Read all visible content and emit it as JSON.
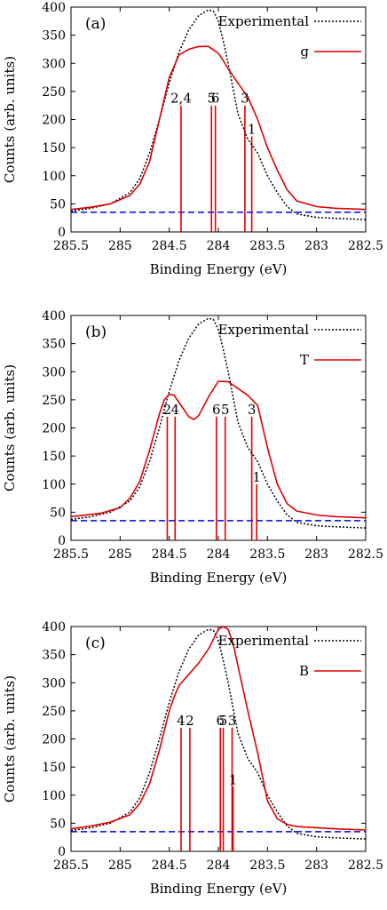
{
  "chart_data": [
    {
      "type": "line",
      "panel_label": "(a)",
      "xlabel": "Binding Energy (eV)",
      "ylabel": "Counts (arb. units)",
      "xlim": [
        285.5,
        282.5
      ],
      "ylim": [
        0,
        400
      ],
      "x_ticks": [
        "285.5",
        "285",
        "284.5",
        "284",
        "283.5",
        "283",
        "282.5"
      ],
      "y_ticks": [
        "0",
        "50",
        "100",
        "150",
        "200",
        "250",
        "300",
        "350",
        "400"
      ],
      "legend_position": "top-right",
      "series": [
        {
          "name": "Experimental",
          "style": "dotted",
          "color": "#000000",
          "x": [
            285.5,
            285.3,
            285.1,
            284.9,
            284.8,
            284.7,
            284.6,
            284.5,
            284.4,
            284.3,
            284.2,
            284.1,
            284.05,
            284.0,
            283.95,
            283.9,
            283.8,
            283.7,
            283.6,
            283.5,
            283.4,
            283.3,
            283.2,
            283.0,
            282.8,
            282.5
          ],
          "y": [
            37,
            42,
            50,
            70,
            95,
            140,
            200,
            265,
            320,
            360,
            385,
            395,
            393,
            375,
            340,
            300,
            210,
            165,
            140,
            100,
            70,
            45,
            32,
            26,
            24,
            22
          ]
        },
        {
          "name": "g",
          "style": "solid",
          "color": "#e00000",
          "x": [
            285.5,
            285.3,
            285.1,
            284.9,
            284.8,
            284.7,
            284.6,
            284.5,
            284.4,
            284.3,
            284.2,
            284.1,
            284.0,
            283.95,
            283.9,
            283.8,
            283.7,
            283.6,
            283.5,
            283.4,
            283.3,
            283.2,
            283.0,
            282.8,
            282.5
          ],
          "y": [
            40,
            44,
            50,
            65,
            85,
            125,
            200,
            275,
            315,
            325,
            330,
            330,
            318,
            305,
            290,
            265,
            240,
            200,
            150,
            110,
            75,
            55,
            45,
            42,
            40
          ]
        }
      ],
      "baseline": {
        "style": "dashed",
        "color": "#0000ee",
        "y": 35
      },
      "peaks": [
        {
          "label": "2,4",
          "x": 284.38,
          "height": 225
        },
        {
          "label": "5",
          "x": 284.07,
          "height": 225
        },
        {
          "label": "6",
          "x": 284.03,
          "height": 225
        },
        {
          "label": "3",
          "x": 283.73,
          "height": 225
        },
        {
          "label": "1",
          "x": 283.66,
          "height": 170
        }
      ]
    },
    {
      "type": "line",
      "panel_label": "(b)",
      "xlabel": "Binding Energy (eV)",
      "ylabel": "Counts (arb. units)",
      "xlim": [
        285.5,
        282.5
      ],
      "ylim": [
        0,
        400
      ],
      "x_ticks": [
        "285.5",
        "285",
        "284.5",
        "284",
        "283.5",
        "283",
        "282.5"
      ],
      "y_ticks": [
        "0",
        "50",
        "100",
        "150",
        "200",
        "250",
        "300",
        "350",
        "400"
      ],
      "legend_position": "top-right",
      "series": [
        {
          "name": "Experimental",
          "style": "dotted",
          "color": "#000000",
          "x": [
            285.5,
            285.3,
            285.1,
            284.9,
            284.8,
            284.7,
            284.6,
            284.5,
            284.4,
            284.3,
            284.2,
            284.1,
            284.05,
            284.0,
            283.95,
            283.9,
            283.8,
            283.7,
            283.6,
            283.5,
            283.4,
            283.3,
            283.2,
            283.0,
            282.8,
            282.5
          ],
          "y": [
            37,
            42,
            50,
            70,
            95,
            140,
            200,
            265,
            320,
            360,
            385,
            395,
            393,
            375,
            340,
            300,
            210,
            165,
            140,
            100,
            70,
            45,
            32,
            26,
            24,
            22
          ]
        },
        {
          "name": "T",
          "style": "solid",
          "color": "#e00000",
          "x": [
            285.5,
            285.2,
            285.0,
            284.9,
            284.8,
            284.7,
            284.6,
            284.55,
            284.5,
            284.45,
            284.4,
            284.3,
            284.25,
            284.2,
            284.1,
            284.0,
            283.9,
            283.8,
            283.7,
            283.6,
            283.5,
            283.4,
            283.3,
            283.2,
            283.0,
            282.8,
            282.5
          ],
          "y": [
            42,
            48,
            58,
            75,
            105,
            160,
            225,
            250,
            260,
            258,
            245,
            220,
            215,
            222,
            255,
            283,
            282,
            270,
            258,
            240,
            165,
            100,
            65,
            52,
            45,
            42,
            40
          ]
        }
      ],
      "baseline": {
        "style": "dashed",
        "color": "#0000ee",
        "y": 35
      },
      "peaks": [
        {
          "label": "2",
          "x": 284.52,
          "height": 220
        },
        {
          "label": "4",
          "x": 284.44,
          "height": 220
        },
        {
          "label": "6",
          "x": 284.02,
          "height": 220
        },
        {
          "label": "5",
          "x": 283.93,
          "height": 220
        },
        {
          "label": "3",
          "x": 283.66,
          "height": 220
        },
        {
          "label": "1",
          "x": 283.61,
          "height": 100
        }
      ]
    },
    {
      "type": "line",
      "panel_label": "(c)",
      "xlabel": "Binding Energy (eV)",
      "ylabel": "Counts (arb. units)",
      "xlim": [
        285.5,
        282.5
      ],
      "ylim": [
        0,
        400
      ],
      "x_ticks": [
        "285.5",
        "285",
        "284.5",
        "284",
        "283.5",
        "283",
        "282.5"
      ],
      "y_ticks": [
        "0",
        "50",
        "100",
        "150",
        "200",
        "250",
        "300",
        "350",
        "400"
      ],
      "legend_position": "top-right",
      "series": [
        {
          "name": "Experimental",
          "style": "dotted",
          "color": "#000000",
          "x": [
            285.5,
            285.3,
            285.1,
            284.9,
            284.8,
            284.7,
            284.6,
            284.5,
            284.4,
            284.3,
            284.2,
            284.1,
            284.05,
            284.0,
            283.95,
            283.9,
            283.8,
            283.7,
            283.6,
            283.5,
            283.4,
            283.3,
            283.2,
            283.0,
            282.8,
            282.5
          ],
          "y": [
            37,
            42,
            50,
            70,
            95,
            140,
            200,
            265,
            320,
            360,
            385,
            395,
            393,
            375,
            340,
            300,
            210,
            165,
            140,
            100,
            70,
            45,
            32,
            26,
            24,
            22
          ]
        },
        {
          "name": "B",
          "style": "solid",
          "color": "#e00000",
          "x": [
            285.5,
            285.3,
            285.1,
            284.9,
            284.8,
            284.7,
            284.6,
            284.5,
            284.45,
            284.4,
            284.3,
            284.2,
            284.1,
            284.0,
            283.95,
            283.9,
            283.85,
            283.8,
            283.7,
            283.6,
            283.5,
            283.4,
            283.3,
            283.2,
            283.0,
            282.8,
            282.5
          ],
          "y": [
            40,
            45,
            52,
            65,
            85,
            120,
            180,
            250,
            275,
            295,
            315,
            335,
            360,
            395,
            400,
            395,
            370,
            330,
            250,
            175,
            90,
            58,
            48,
            44,
            42,
            40,
            38
          ]
        }
      ],
      "baseline": {
        "style": "dashed",
        "color": "#0000ee",
        "y": 35
      },
      "peaks": [
        {
          "label": "4",
          "x": 284.38,
          "height": 220
        },
        {
          "label": "2",
          "x": 284.29,
          "height": 220
        },
        {
          "label": "6",
          "x": 283.98,
          "height": 220
        },
        {
          "label": "5",
          "x": 283.95,
          "height": 220
        },
        {
          "label": "3",
          "x": 283.86,
          "height": 220
        },
        {
          "label": "1",
          "x": 283.85,
          "height": 115
        }
      ]
    }
  ]
}
